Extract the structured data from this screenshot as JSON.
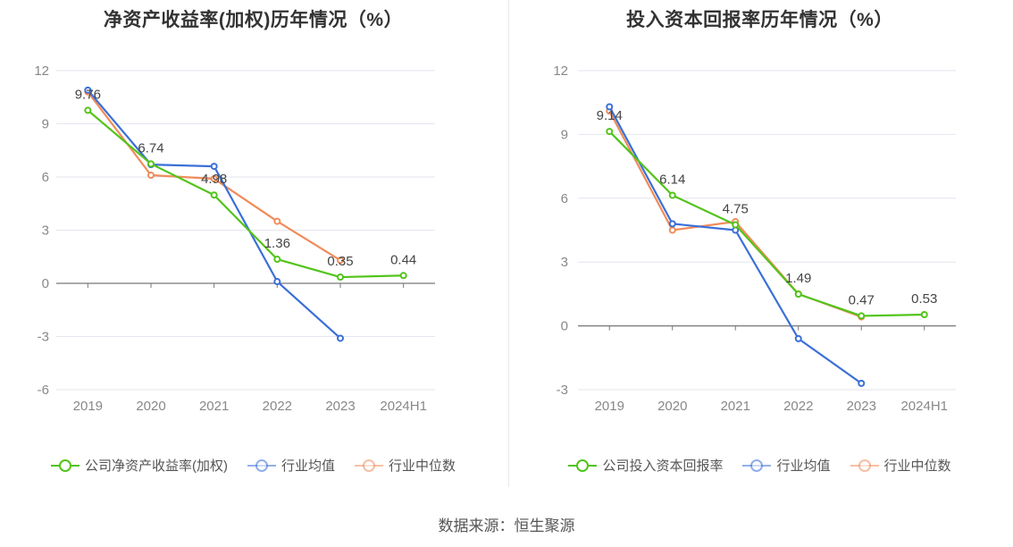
{
  "source": "数据来源：恒生聚源",
  "chart_data": [
    {
      "type": "line",
      "title": "净资产收益率(加权)历年情况（%）",
      "categories": [
        "2019",
        "2020",
        "2021",
        "2022",
        "2023",
        "2024H1"
      ],
      "ylim": [
        -6,
        12
      ],
      "yticks": [
        -6,
        -3,
        0,
        3,
        6,
        9,
        12
      ],
      "grid": true,
      "legend_position": "bottom",
      "series": [
        {
          "name": "公司净资产收益率(加权)",
          "color": "#52c41a",
          "values": [
            9.76,
            6.74,
            4.98,
            1.36,
            0.35,
            0.44
          ],
          "labels": [
            "9.76",
            "6.74",
            "4.98",
            "1.36",
            "0.35",
            "0.44"
          ]
        },
        {
          "name": "行业均值",
          "color": "#3a6fd8",
          "values": [
            10.9,
            6.7,
            6.6,
            0.1,
            -3.1,
            null
          ]
        },
        {
          "name": "行业中位数",
          "color": "#f08c5a",
          "values": [
            10.8,
            6.1,
            5.9,
            3.5,
            1.3,
            null
          ]
        }
      ]
    },
    {
      "type": "line",
      "title": "投入资本回报率历年情况（%）",
      "categories": [
        "2019",
        "2020",
        "2021",
        "2022",
        "2023",
        "2024H1"
      ],
      "ylim": [
        -3,
        12
      ],
      "yticks": [
        -3,
        0,
        3,
        6,
        9,
        12
      ],
      "grid": true,
      "legend_position": "bottom",
      "series": [
        {
          "name": "公司投入资本回报率",
          "color": "#52c41a",
          "values": [
            9.14,
            6.14,
            4.75,
            1.49,
            0.47,
            0.53
          ],
          "labels": [
            "9.14",
            "6.14",
            "4.75",
            "1.49",
            "0.47",
            "0.53"
          ]
        },
        {
          "name": "行业均值",
          "color": "#3a6fd8",
          "values": [
            10.3,
            4.8,
            4.5,
            -0.6,
            -2.7,
            null
          ]
        },
        {
          "name": "行业中位数",
          "color": "#f08c5a",
          "values": [
            10.1,
            4.5,
            4.9,
            1.5,
            0.42,
            null
          ]
        }
      ]
    }
  ]
}
